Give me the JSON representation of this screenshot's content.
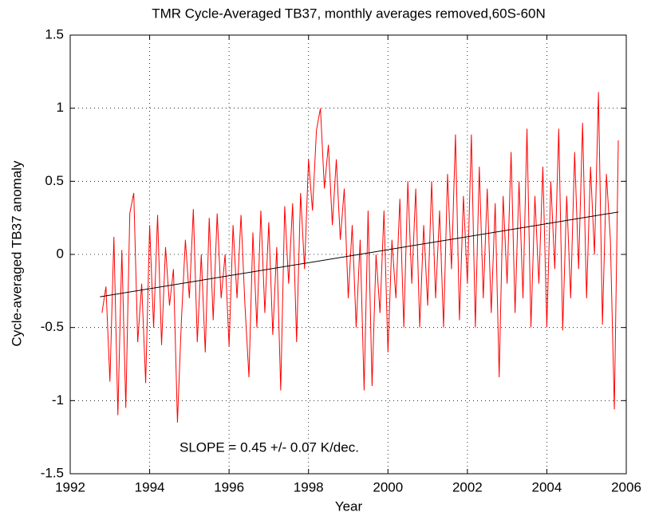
{
  "chart_data": {
    "type": "line",
    "title": "TMR Cycle-Averaged TB37, monthly averages removed,60S-60N",
    "x_label": "Year",
    "y_label": "Cycle-averaged TB37 anomaly",
    "annotation": "SLOPE = 0.45 +/- 0.07 K/dec.",
    "xlim": [
      1992,
      2006
    ],
    "ylim": [
      -1.5,
      1.5
    ],
    "xticks": [
      1992,
      1994,
      1996,
      1998,
      2000,
      2002,
      2004,
      2006
    ],
    "yticks": [
      -1.5,
      -1,
      -0.5,
      0,
      0.5,
      1,
      1.5
    ],
    "grid": true,
    "series": [
      {
        "color": "#ff0000",
        "x": [
          1992.8,
          1992.9,
          1993.0,
          1993.1,
          1993.2,
          1993.3,
          1993.4,
          1993.5,
          1993.6,
          1993.7,
          1993.8,
          1993.9,
          1994.0,
          1994.1,
          1994.2,
          1994.3,
          1994.4,
          1994.5,
          1994.6,
          1994.7,
          1994.8,
          1994.9,
          1995.0,
          1995.1,
          1995.2,
          1995.3,
          1995.4,
          1995.5,
          1995.6,
          1995.7,
          1995.8,
          1995.9,
          1996.0,
          1996.1,
          1996.2,
          1996.3,
          1996.4,
          1996.5,
          1996.6,
          1996.7,
          1996.8,
          1996.9,
          1997.0,
          1997.1,
          1997.2,
          1997.3,
          1997.4,
          1997.5,
          1997.6,
          1997.7,
          1997.8,
          1997.9,
          1998.0,
          1998.1,
          1998.2,
          1998.3,
          1998.4,
          1998.5,
          1998.6,
          1998.7,
          1998.8,
          1998.9,
          1999.0,
          1999.1,
          1999.2,
          1999.3,
          1999.4,
          1999.5,
          1999.6,
          1999.7,
          1999.8,
          1999.9,
          2000.0,
          2000.1,
          2000.2,
          2000.3,
          2000.4,
          2000.5,
          2000.6,
          2000.7,
          2000.8,
          2000.9,
          2001.0,
          2001.1,
          2001.2,
          2001.3,
          2001.4,
          2001.5,
          2001.6,
          2001.7,
          2001.8,
          2001.9,
          2002.0,
          2002.1,
          2002.2,
          2002.3,
          2002.4,
          2002.5,
          2002.6,
          2002.7,
          2002.8,
          2002.9,
          2003.0,
          2003.1,
          2003.2,
          2003.3,
          2003.4,
          2003.5,
          2003.6,
          2003.7,
          2003.8,
          2003.9,
          2004.0,
          2004.1,
          2004.2,
          2004.3,
          2004.4,
          2004.5,
          2004.6,
          2004.7,
          2004.8,
          2004.9,
          2005.0,
          2005.1,
          2005.2,
          2005.3,
          2005.4,
          2005.5,
          2005.6,
          2005.7,
          2005.8
        ],
        "values": [
          -0.4,
          -0.22,
          -0.87,
          0.12,
          -1.1,
          0.03,
          -1.05,
          0.28,
          0.42,
          -0.6,
          -0.2,
          -0.88,
          0.2,
          -0.5,
          0.27,
          -0.62,
          0.05,
          -0.35,
          -0.1,
          -1.15,
          -0.45,
          0.1,
          -0.3,
          0.31,
          -0.6,
          0.0,
          -0.67,
          0.25,
          -0.45,
          0.28,
          -0.3,
          0.0,
          -0.63,
          0.2,
          -0.3,
          0.27,
          -0.35,
          -0.84,
          0.15,
          -0.5,
          0.3,
          -0.4,
          0.22,
          -0.55,
          0.05,
          -0.93,
          0.33,
          -0.2,
          0.35,
          -0.6,
          0.42,
          -0.1,
          0.65,
          0.3,
          0.85,
          1.0,
          0.45,
          0.75,
          0.2,
          0.65,
          0.1,
          0.45,
          -0.3,
          0.2,
          -0.5,
          0.1,
          -0.93,
          0.3,
          -0.9,
          0.0,
          -0.4,
          0.3,
          -0.67,
          0.1,
          -0.3,
          0.38,
          -0.5,
          0.5,
          -0.2,
          0.45,
          -0.5,
          0.2,
          -0.35,
          0.5,
          -0.3,
          0.3,
          -0.5,
          0.55,
          -0.1,
          0.82,
          -0.45,
          0.4,
          -0.2,
          0.82,
          -0.5,
          0.6,
          -0.3,
          0.45,
          -0.4,
          0.35,
          -0.84,
          0.4,
          -0.2,
          0.7,
          -0.4,
          0.5,
          -0.3,
          0.86,
          -0.5,
          0.4,
          -0.2,
          0.6,
          -0.5,
          0.5,
          -0.1,
          0.86,
          -0.52,
          0.4,
          -0.3,
          0.7,
          -0.1,
          0.9,
          -0.3,
          0.6,
          0.0,
          1.11,
          -0.48,
          0.55,
          0.1,
          -1.06,
          0.78
        ]
      },
      {
        "color": "#000000",
        "x": [
          1992.75,
          2005.8
        ],
        "values": [
          -0.29,
          0.29
        ]
      }
    ]
  }
}
